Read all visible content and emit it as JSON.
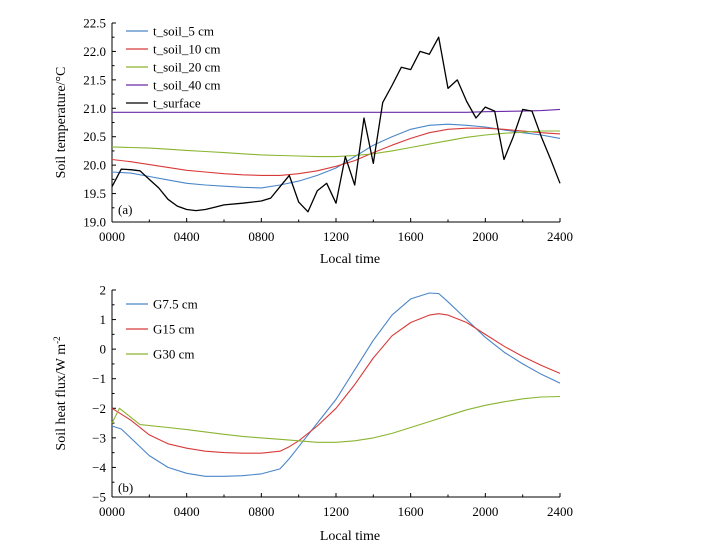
{
  "chart_data": [
    {
      "type": "line",
      "panel_label": "(a)",
      "xlabel": "Local time",
      "ylabel": "Soil temperature/°C",
      "x_ticks": [
        "0000",
        "0400",
        "0800",
        "1200",
        "1600",
        "2000",
        "2400"
      ],
      "y_ticks": [
        "19.0",
        "19.5",
        "20.0",
        "20.5",
        "21.0",
        "21.5",
        "22.0",
        "22.5"
      ],
      "xlim": [
        0,
        2400
      ],
      "ylim": [
        19.0,
        22.5
      ],
      "legend_position": "top-left",
      "grid": false,
      "series": [
        {
          "name": "t_soil_5 cm",
          "color": "#4a86c8",
          "points": [
            [
              0,
              19.88
            ],
            [
              100,
              19.86
            ],
            [
              200,
              19.8
            ],
            [
              300,
              19.74
            ],
            [
              400,
              19.68
            ],
            [
              500,
              19.65
            ],
            [
              600,
              19.63
            ],
            [
              700,
              19.61
            ],
            [
              800,
              19.6
            ],
            [
              900,
              19.65
            ],
            [
              1000,
              19.72
            ],
            [
              1100,
              19.82
            ],
            [
              1200,
              19.95
            ],
            [
              1300,
              20.15
            ],
            [
              1400,
              20.35
            ],
            [
              1500,
              20.5
            ],
            [
              1600,
              20.63
            ],
            [
              1700,
              20.7
            ],
            [
              1800,
              20.72
            ],
            [
              1900,
              20.7
            ],
            [
              2000,
              20.67
            ],
            [
              2100,
              20.62
            ],
            [
              2200,
              20.57
            ],
            [
              2300,
              20.53
            ],
            [
              2400,
              20.47
            ]
          ]
        },
        {
          "name": "t_soil_10 cm",
          "color": "#d83a3a",
          "points": [
            [
              0,
              20.1
            ],
            [
              100,
              20.06
            ],
            [
              200,
              20.01
            ],
            [
              300,
              19.96
            ],
            [
              400,
              19.91
            ],
            [
              500,
              19.88
            ],
            [
              600,
              19.85
            ],
            [
              700,
              19.83
            ],
            [
              800,
              19.82
            ],
            [
              900,
              19.82
            ],
            [
              1000,
              19.85
            ],
            [
              1100,
              19.9
            ],
            [
              1200,
              19.98
            ],
            [
              1300,
              20.08
            ],
            [
              1400,
              20.22
            ],
            [
              1500,
              20.35
            ],
            [
              1600,
              20.47
            ],
            [
              1700,
              20.57
            ],
            [
              1800,
              20.63
            ],
            [
              1900,
              20.65
            ],
            [
              2000,
              20.65
            ],
            [
              2100,
              20.63
            ],
            [
              2200,
              20.6
            ],
            [
              2300,
              20.57
            ],
            [
              2400,
              20.55
            ]
          ]
        },
        {
          "name": "t_soil_20 cm",
          "color": "#8ab531",
          "points": [
            [
              0,
              20.32
            ],
            [
              100,
              20.31
            ],
            [
              200,
              20.3
            ],
            [
              300,
              20.28
            ],
            [
              400,
              20.26
            ],
            [
              500,
              20.24
            ],
            [
              600,
              20.22
            ],
            [
              700,
              20.2
            ],
            [
              800,
              20.18
            ],
            [
              900,
              20.17
            ],
            [
              1000,
              20.16
            ],
            [
              1100,
              20.15
            ],
            [
              1200,
              20.15
            ],
            [
              1300,
              20.17
            ],
            [
              1400,
              20.2
            ],
            [
              1500,
              20.25
            ],
            [
              1600,
              20.31
            ],
            [
              1700,
              20.37
            ],
            [
              1800,
              20.43
            ],
            [
              1900,
              20.49
            ],
            [
              2000,
              20.53
            ],
            [
              2100,
              20.56
            ],
            [
              2200,
              20.58
            ],
            [
              2300,
              20.6
            ],
            [
              2400,
              20.6
            ]
          ]
        },
        {
          "name": "t_soil_40 cm",
          "color": "#6a2aa8",
          "points": [
            [
              0,
              20.93
            ],
            [
              300,
              20.93
            ],
            [
              600,
              20.93
            ],
            [
              900,
              20.93
            ],
            [
              1200,
              20.93
            ],
            [
              1500,
              20.93
            ],
            [
              1800,
              20.93
            ],
            [
              1900,
              20.93
            ],
            [
              2000,
              20.94
            ],
            [
              2200,
              20.95
            ],
            [
              2300,
              20.96
            ],
            [
              2400,
              20.98
            ]
          ]
        },
        {
          "name": "t_surface",
          "color": "#000000",
          "points": [
            [
              0,
              19.62
            ],
            [
              50,
              19.93
            ],
            [
              100,
              19.92
            ],
            [
              150,
              19.9
            ],
            [
              200,
              19.75
            ],
            [
              250,
              19.6
            ],
            [
              300,
              19.4
            ],
            [
              350,
              19.28
            ],
            [
              400,
              19.22
            ],
            [
              450,
              19.2
            ],
            [
              500,
              19.22
            ],
            [
              550,
              19.26
            ],
            [
              600,
              19.3
            ],
            [
              700,
              19.33
            ],
            [
              800,
              19.37
            ],
            [
              850,
              19.42
            ],
            [
              900,
              19.62
            ],
            [
              950,
              19.82
            ],
            [
              1000,
              19.35
            ],
            [
              1050,
              19.18
            ],
            [
              1100,
              19.55
            ],
            [
              1150,
              19.68
            ],
            [
              1200,
              19.33
            ],
            [
              1250,
              20.15
            ],
            [
              1300,
              19.65
            ],
            [
              1350,
              20.83
            ],
            [
              1400,
              20.03
            ],
            [
              1450,
              21.1
            ],
            [
              1500,
              21.4
            ],
            [
              1550,
              21.72
            ],
            [
              1600,
              21.68
            ],
            [
              1650,
              22.0
            ],
            [
              1700,
              21.95
            ],
            [
              1750,
              22.25
            ],
            [
              1800,
              21.35
            ],
            [
              1850,
              21.5
            ],
            [
              1900,
              21.12
            ],
            [
              1950,
              20.83
            ],
            [
              2000,
              21.02
            ],
            [
              2050,
              20.95
            ],
            [
              2100,
              20.1
            ],
            [
              2150,
              20.5
            ],
            [
              2200,
              20.98
            ],
            [
              2250,
              20.95
            ],
            [
              2300,
              20.5
            ],
            [
              2350,
              20.1
            ],
            [
              2400,
              19.68
            ]
          ]
        }
      ]
    },
    {
      "type": "line",
      "panel_label": "(b)",
      "xlabel": "Local time",
      "ylabel": "Soil heat flux/W m",
      "ylabel_superscript": "-2",
      "x_ticks": [
        "0000",
        "0400",
        "0800",
        "1200",
        "1600",
        "2000",
        "2400"
      ],
      "y_ticks": [
        "−5",
        "−4",
        "−3",
        "−2",
        "−1",
        "0",
        "1",
        "2"
      ],
      "xlim": [
        0,
        2400
      ],
      "ylim": [
        -5,
        2
      ],
      "legend_position": "top-left",
      "grid": false,
      "series": [
        {
          "name": "G7.5 cm",
          "color": "#4a86c8",
          "points": [
            [
              0,
              -2.6
            ],
            [
              50,
              -2.7
            ],
            [
              100,
              -3.0
            ],
            [
              200,
              -3.6
            ],
            [
              300,
              -4.0
            ],
            [
              400,
              -4.2
            ],
            [
              500,
              -4.3
            ],
            [
              600,
              -4.3
            ],
            [
              700,
              -4.28
            ],
            [
              800,
              -4.22
            ],
            [
              900,
              -4.05
            ],
            [
              950,
              -3.7
            ],
            [
              1000,
              -3.3
            ],
            [
              1100,
              -2.5
            ],
            [
              1200,
              -1.7
            ],
            [
              1300,
              -0.7
            ],
            [
              1400,
              0.3
            ],
            [
              1500,
              1.15
            ],
            [
              1600,
              1.7
            ],
            [
              1700,
              1.9
            ],
            [
              1750,
              1.88
            ],
            [
              1800,
              1.6
            ],
            [
              1900,
              1.0
            ],
            [
              2000,
              0.4
            ],
            [
              2100,
              -0.1
            ],
            [
              2200,
              -0.5
            ],
            [
              2300,
              -0.85
            ],
            [
              2400,
              -1.15
            ]
          ]
        },
        {
          "name": "G15 cm",
          "color": "#d83a3a",
          "points": [
            [
              0,
              -2.0
            ],
            [
              100,
              -2.4
            ],
            [
              200,
              -2.9
            ],
            [
              300,
              -3.2
            ],
            [
              400,
              -3.35
            ],
            [
              500,
              -3.45
            ],
            [
              600,
              -3.5
            ],
            [
              700,
              -3.52
            ],
            [
              800,
              -3.52
            ],
            [
              900,
              -3.45
            ],
            [
              950,
              -3.3
            ],
            [
              1000,
              -3.1
            ],
            [
              1100,
              -2.6
            ],
            [
              1200,
              -2.0
            ],
            [
              1300,
              -1.2
            ],
            [
              1400,
              -0.3
            ],
            [
              1500,
              0.45
            ],
            [
              1600,
              0.9
            ],
            [
              1700,
              1.15
            ],
            [
              1750,
              1.2
            ],
            [
              1800,
              1.15
            ],
            [
              1900,
              0.9
            ],
            [
              2000,
              0.5
            ],
            [
              2100,
              0.1
            ],
            [
              2200,
              -0.25
            ],
            [
              2300,
              -0.55
            ],
            [
              2400,
              -0.82
            ]
          ]
        },
        {
          "name": "G30 cm",
          "color": "#8ab531",
          "points": [
            [
              0,
              -2.5
            ],
            [
              40,
              -2.0
            ],
            [
              80,
              -2.2
            ],
            [
              150,
              -2.55
            ],
            [
              300,
              -2.65
            ],
            [
              400,
              -2.72
            ],
            [
              500,
              -2.8
            ],
            [
              600,
              -2.88
            ],
            [
              700,
              -2.95
            ],
            [
              800,
              -3.0
            ],
            [
              900,
              -3.05
            ],
            [
              1000,
              -3.1
            ],
            [
              1100,
              -3.15
            ],
            [
              1200,
              -3.15
            ],
            [
              1300,
              -3.1
            ],
            [
              1400,
              -3.0
            ],
            [
              1500,
              -2.85
            ],
            [
              1600,
              -2.65
            ],
            [
              1700,
              -2.45
            ],
            [
              1800,
              -2.25
            ],
            [
              1900,
              -2.05
            ],
            [
              2000,
              -1.9
            ],
            [
              2100,
              -1.78
            ],
            [
              2200,
              -1.68
            ],
            [
              2300,
              -1.62
            ],
            [
              2400,
              -1.6
            ]
          ]
        }
      ]
    }
  ]
}
